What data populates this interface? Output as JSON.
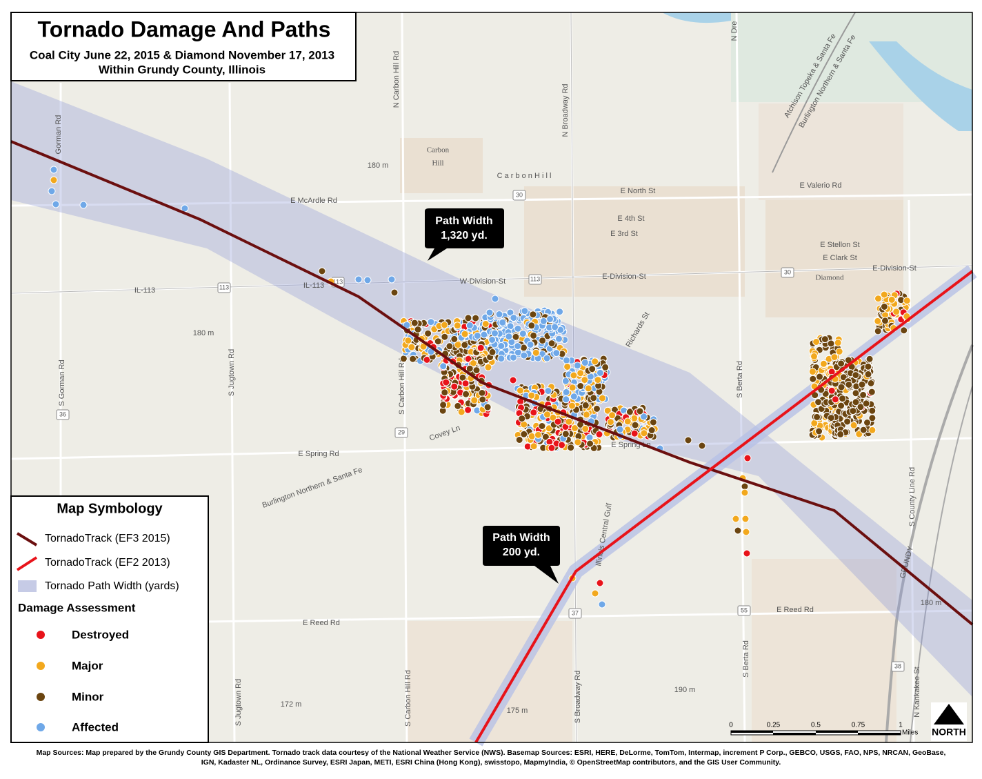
{
  "title": {
    "heading": "Tornado Damage And Paths",
    "line1": "Coal City June 22, 2015 & Diamond November 17, 2013",
    "line2": "Within Grundy County, Illinois"
  },
  "callouts": [
    {
      "lines": [
        "Path Width",
        "1,320 yd."
      ]
    },
    {
      "lines": [
        "Path Width",
        "200 yd."
      ]
    }
  ],
  "legend": {
    "title": "Map Symbology",
    "items": [
      "TornadoTrack (EF3 2015)",
      "TornadoTrack (EF2 2013)",
      "Tornado Path Width (yards)"
    ],
    "damage_title": "Damage Assessment",
    "damage": [
      "Destroyed",
      "Major",
      "Minor",
      "Affected"
    ]
  },
  "labels": [
    "N Carbon Hill Rd",
    "N Broadway Rd",
    "Carbon",
    "Hill",
    "C a r b o n   H i l l",
    "180 m",
    "E McArdle Rd",
    "E North St",
    "E 4th St",
    "E 3rd St",
    "E Valerio Rd",
    "E Stellon St",
    "E Clark St",
    "Diamond",
    "E-Division-St",
    "E-Division-St",
    "W-Division-St",
    "IL-113",
    "IL-113",
    "S Gorman Rd",
    "Gorman Rd",
    "S Jugtown Rd",
    "S Carbon Hill Rd",
    "180 m",
    "Richards St",
    "S Berta Rd",
    "E Spring Rd",
    "Covey Ln",
    "Burlington Northern & Santa Fe",
    "Illinois Central Gulf",
    "E Reed Rd",
    "E Reed Rd",
    "S Jugtown Rd",
    "S Carbon Hill Rd",
    "S Broadway Rd",
    "S Berta Rd",
    "172 m",
    "175 m",
    "190 m",
    "S County Line Rd",
    "N Kankakee St",
    "GRUNDY",
    "180 m",
    "N Dre",
    "Atchison Topeka & Santa Fe",
    "Burlington Northern & Santa Fe",
    "E Spring Ln"
  ],
  "shields": [
    "113",
    "113",
    "113",
    "30",
    "30",
    "29",
    "36",
    "37",
    "55",
    "38"
  ],
  "scale": {
    "ticks": [
      "0",
      "0.25",
      "0.5",
      "0.75",
      "1"
    ],
    "unit": "Miles"
  },
  "north": "NORTH",
  "sources": [
    "Map Sources: Map prepared by the Grundy County GIS Department. Tornado track data courtesy of the National Weather Service (NWS). Basemap Sources: ESRI, HERE, DeLorme, TomTom, Intermap, increment P Corp., GEBCO, USGS, FAO, NPS, NRCAN, GeoBase,",
    "IGN, Kadaster NL, Ordinance Survey, ESRI Japan, METI, ESRI China (Hong Kong), swisstopo, MapmyIndia, © OpenStreetMap contributors, and the GIS User Community."
  ]
}
